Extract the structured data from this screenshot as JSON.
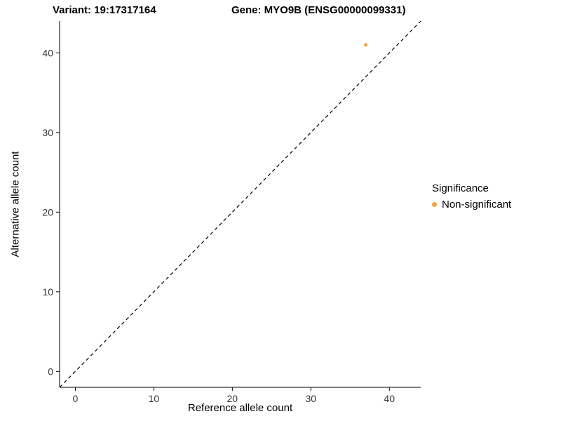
{
  "figure": {
    "background": "#FFFFFF",
    "title_left": "Variant: 19:17317164",
    "title_right": "Gene: MYO9B (ENSG00000099331)"
  },
  "axes": {
    "x_label": "Reference allele count",
    "y_label": "Alternative allele count"
  },
  "legend": {
    "title": "Significance",
    "items": [
      {
        "label": "Non-significant",
        "color": "#F9A03F",
        "marker": "dot"
      }
    ]
  },
  "chart_data": {
    "type": "scatter",
    "title_left": "Variant: 19:17317164",
    "title_right": "Gene: MYO9B (ENSG00000099331)",
    "xlabel": "Reference allele count",
    "ylabel": "Alternative allele count",
    "xlim": [
      -2,
      44
    ],
    "ylim": [
      -2,
      44
    ],
    "xticks": [
      0,
      10,
      20,
      30,
      40
    ],
    "yticks": [
      0,
      10,
      20,
      30,
      40
    ],
    "grid": false,
    "legend_position": "right",
    "axis_color": "#000000",
    "tick_label_color": "#333333",
    "tick_label_size": 14,
    "series": [
      {
        "name": "Non-significant",
        "color": "#F9A03F",
        "marker_radius": 2.5,
        "points": [
          {
            "x": 37,
            "y": 41
          }
        ]
      }
    ],
    "reference_line": {
      "style": "dashed",
      "color": "#000000",
      "dash": "5,4",
      "from": [
        -2,
        -2
      ],
      "to": [
        44,
        44
      ]
    }
  }
}
